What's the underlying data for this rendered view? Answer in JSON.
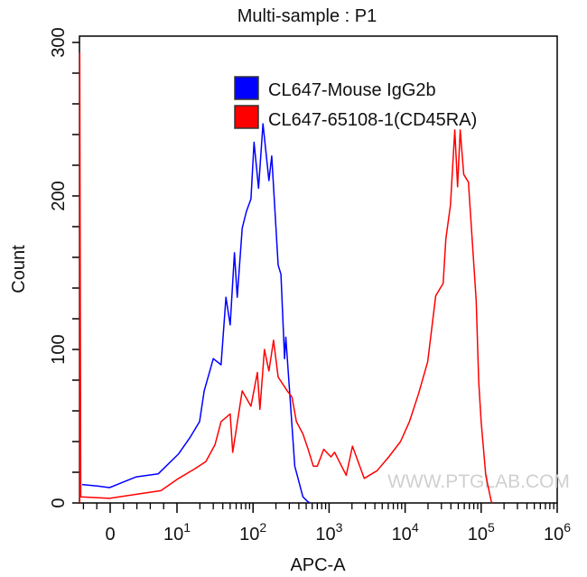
{
  "chart_data": {
    "type": "line",
    "title": "Multi-sample : P1",
    "xlabel": "APC-A",
    "ylabel": "Count",
    "x_scale": "biexponential (linear near 0, log above 10)",
    "xlim": [
      -4.6,
      1000000
    ],
    "ylim": [
      0,
      300
    ],
    "grid": false,
    "legend_position": "top-center",
    "x_ticks": [
      {
        "value": 0,
        "base": "0",
        "exp": ""
      },
      {
        "value": 10,
        "base": "10",
        "exp": "1"
      },
      {
        "value": 100,
        "base": "10",
        "exp": "2"
      },
      {
        "value": 1000,
        "base": "10",
        "exp": "3"
      },
      {
        "value": 10000,
        "base": "10",
        "exp": "4"
      },
      {
        "value": 100000,
        "base": "10",
        "exp": "5"
      },
      {
        "value": 1000000,
        "base": "10",
        "exp": "6"
      }
    ],
    "y_ticks": [
      0,
      100,
      200,
      300
    ],
    "series": [
      {
        "name": "CL647-Mouse IgG2b",
        "color": "#0000ff",
        "points": [
          [
            -4.2,
            12
          ],
          [
            -1.9,
            11
          ],
          [
            -0.1,
            10
          ],
          [
            3.9,
            17
          ],
          [
            7.2,
            19
          ],
          [
            10.5,
            32
          ],
          [
            15,
            43
          ],
          [
            19.8,
            53
          ],
          [
            22.8,
            73
          ],
          [
            30,
            94
          ],
          [
            38,
            90
          ],
          [
            44,
            134
          ],
          [
            50,
            116
          ],
          [
            57,
            163
          ],
          [
            62,
            134
          ],
          [
            72,
            179
          ],
          [
            82,
            190
          ],
          [
            94,
            198
          ],
          [
            103,
            235
          ],
          [
            118,
            205
          ],
          [
            135,
            247
          ],
          [
            162,
            210
          ],
          [
            176,
            226
          ],
          [
            214,
            155
          ],
          [
            233,
            149
          ],
          [
            260,
            94
          ],
          [
            270,
            108
          ],
          [
            310,
            65
          ],
          [
            354,
            24
          ],
          [
            453,
            4
          ],
          [
            520,
            1
          ],
          [
            560,
            0
          ]
        ]
      },
      {
        "name": "CL647-65108-1(CD45RA)",
        "color": "#ff0000",
        "points": [
          [
            -4.55,
            0
          ],
          [
            -4.55,
            293
          ],
          [
            -4.4,
            4
          ],
          [
            -0.1,
            3
          ],
          [
            4.5,
            6
          ],
          [
            7.6,
            8
          ],
          [
            10.5,
            16
          ],
          [
            16.8,
            22
          ],
          [
            24,
            27
          ],
          [
            31.6,
            38
          ],
          [
            38,
            53
          ],
          [
            50,
            58
          ],
          [
            54,
            33
          ],
          [
            72,
            73
          ],
          [
            94,
            63
          ],
          [
            114,
            85
          ],
          [
            123,
            61
          ],
          [
            141,
            100
          ],
          [
            162,
            86
          ],
          [
            186,
            106
          ],
          [
            214,
            82
          ],
          [
            282,
            73
          ],
          [
            325,
            69
          ],
          [
            372,
            53
          ],
          [
            453,
            45
          ],
          [
            530,
            35
          ],
          [
            620,
            24
          ],
          [
            700,
            24
          ],
          [
            850,
            35
          ],
          [
            1060,
            30
          ],
          [
            1180,
            33
          ],
          [
            1680,
            18
          ],
          [
            2030,
            37
          ],
          [
            2900,
            16
          ],
          [
            4270,
            21
          ],
          [
            6100,
            30
          ],
          [
            8700,
            40
          ],
          [
            11400,
            53
          ],
          [
            15000,
            71
          ],
          [
            19800,
            92
          ],
          [
            25300,
            135
          ],
          [
            31600,
            143
          ],
          [
            34300,
            172
          ],
          [
            39500,
            194
          ],
          [
            45000,
            243
          ],
          [
            49000,
            206
          ],
          [
            53000,
            243
          ],
          [
            59000,
            214
          ],
          [
            68000,
            209
          ],
          [
            76000,
            172
          ],
          [
            86000,
            132
          ],
          [
            93000,
            79
          ],
          [
            100000,
            53
          ],
          [
            115000,
            18
          ],
          [
            136000,
            1
          ],
          [
            140000,
            0
          ]
        ]
      }
    ],
    "watermark": "WWW.PTGLAB.COM"
  }
}
